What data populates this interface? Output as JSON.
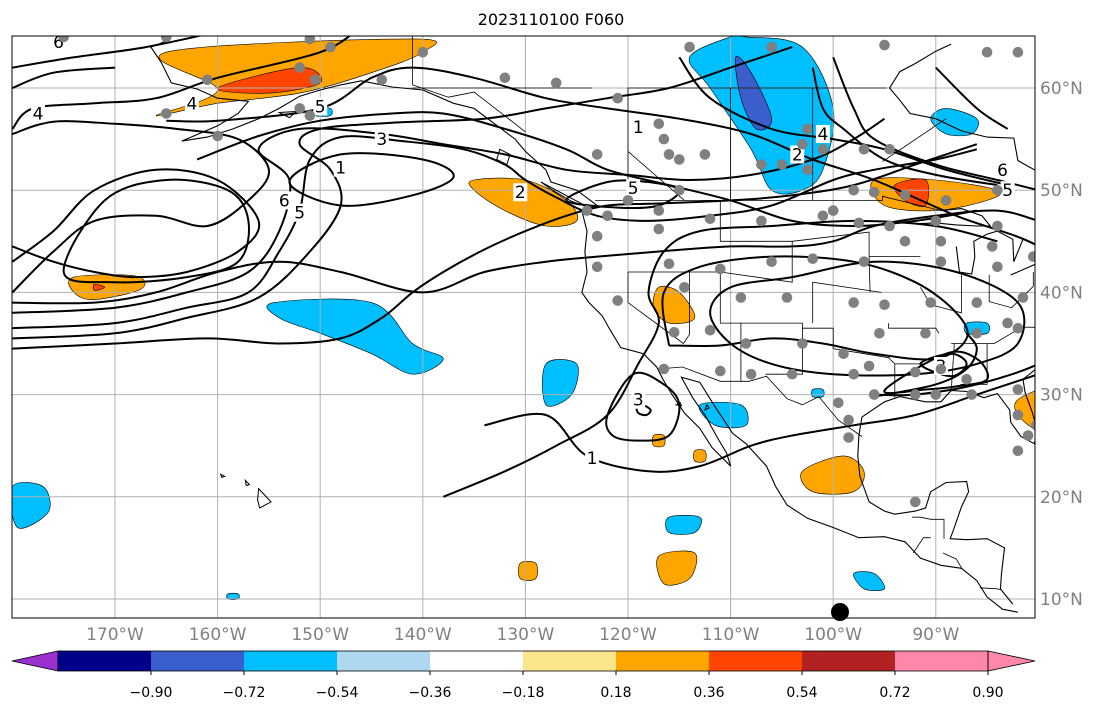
{
  "title": "2023110100 F060",
  "map": {
    "lat_labels": [
      "60°N",
      "50°N",
      "40°N",
      "30°N",
      "20°N",
      "10°N"
    ],
    "lon_labels": [
      "170°W",
      "160°W",
      "150°W",
      "140°W",
      "130°W",
      "120°W",
      "110°W",
      "100°W",
      "90°W"
    ],
    "contour_labels": [
      {
        "text": "6",
        "lon": -175.5,
        "lat": 64.5
      },
      {
        "text": "4",
        "lon": -162.5,
        "lat": 58.5
      },
      {
        "text": "4",
        "lon": -177.5,
        "lat": 57.5
      },
      {
        "text": "5",
        "lon": -150.0,
        "lat": 58.2
      },
      {
        "text": "3",
        "lon": -144.0,
        "lat": 55.0
      },
      {
        "text": "1",
        "lon": -148.0,
        "lat": 52.2
      },
      {
        "text": "6",
        "lon": -153.5,
        "lat": 49.0
      },
      {
        "text": "5",
        "lon": -152.0,
        "lat": 47.8
      },
      {
        "text": "2",
        "lon": -130.5,
        "lat": 49.8
      },
      {
        "text": "1",
        "lon": -119.0,
        "lat": 56.2
      },
      {
        "text": "5",
        "lon": -119.5,
        "lat": 50.2
      },
      {
        "text": "2",
        "lon": -103.5,
        "lat": 53.5
      },
      {
        "text": "4",
        "lon": -101.0,
        "lat": 55.5
      },
      {
        "text": "6",
        "lon": -83.5,
        "lat": 52.0
      },
      {
        "text": "5",
        "lon": -83.0,
        "lat": 50.0
      },
      {
        "text": "3",
        "lon": -119.0,
        "lat": 29.5
      },
      {
        "text": "3",
        "lon": -89.5,
        "lat": 32.8
      },
      {
        "text": "1",
        "lon": -123.5,
        "lat": 23.8
      }
    ],
    "marker_color": "#808080",
    "land_color": "#ffffff"
  },
  "colorbar": {
    "ticks": [
      "−0.90",
      "−0.72",
      "−0.54",
      "−0.36",
      "−0.18",
      "0.18",
      "0.36",
      "0.54",
      "0.72",
      "0.90"
    ],
    "colors": [
      "#9b30d0",
      "#00008b",
      "#3a5fcd",
      "#00bfff",
      "#add8f0",
      "#ffffff",
      "#fce68c",
      "#ffa500",
      "#ff4500",
      "#b22222",
      "#ff88aa",
      "#ff88aa"
    ]
  },
  "fields": {
    "colors": {
      "orange": "#ffa500",
      "red": "#ff4500",
      "blue": "#00bfff",
      "royal": "#3a5fcd",
      "lightblue": "#add8f0"
    }
  }
}
